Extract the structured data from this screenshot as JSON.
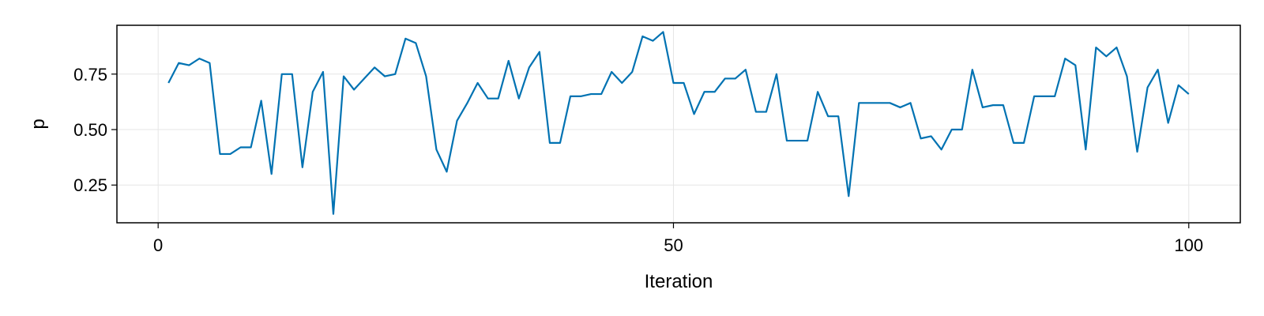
{
  "chart_data": {
    "type": "line",
    "title": "",
    "xlabel": "Iteration",
    "ylabel": "p",
    "xlim": [
      -4,
      105
    ],
    "ylim": [
      0.08,
      0.97
    ],
    "xticks": [
      0,
      50,
      100
    ],
    "xtick_labels": [
      "0",
      "50",
      "100"
    ],
    "yticks": [
      0.25,
      0.5,
      0.75
    ],
    "ytick_labels": [
      "0.25",
      "0.50",
      "0.75"
    ],
    "grid": true,
    "legend": "none",
    "series": [
      {
        "color": "#0072B2",
        "x": [
          1,
          2,
          3,
          4,
          5,
          6,
          7,
          8,
          9,
          10,
          11,
          12,
          13,
          14,
          15,
          16,
          17,
          18,
          19,
          20,
          21,
          22,
          23,
          24,
          25,
          26,
          27,
          28,
          29,
          30,
          31,
          32,
          33,
          34,
          35,
          36,
          37,
          38,
          39,
          40,
          41,
          42,
          43,
          44,
          45,
          46,
          47,
          48,
          49,
          50,
          51,
          52,
          53,
          54,
          55,
          56,
          57,
          58,
          59,
          60,
          61,
          62,
          63,
          64,
          65,
          66,
          67,
          68,
          69,
          70,
          71,
          72,
          73,
          74,
          75,
          76,
          77,
          78,
          79,
          80,
          81,
          82,
          83,
          84,
          85,
          86,
          87,
          88,
          89,
          90,
          91,
          92,
          93,
          94,
          95,
          96,
          97,
          98,
          99,
          100
        ],
        "y": [
          0.71,
          0.8,
          0.79,
          0.82,
          0.8,
          0.39,
          0.39,
          0.42,
          0.42,
          0.63,
          0.3,
          0.75,
          0.75,
          0.33,
          0.67,
          0.76,
          0.12,
          0.74,
          0.68,
          0.73,
          0.78,
          0.74,
          0.75,
          0.91,
          0.89,
          0.74,
          0.41,
          0.31,
          0.54,
          0.62,
          0.71,
          0.64,
          0.64,
          0.81,
          0.64,
          0.78,
          0.85,
          0.44,
          0.44,
          0.65,
          0.65,
          0.66,
          0.66,
          0.76,
          0.71,
          0.76,
          0.92,
          0.9,
          0.94,
          0.71,
          0.71,
          0.57,
          0.67,
          0.67,
          0.73,
          0.73,
          0.77,
          0.58,
          0.58,
          0.75,
          0.45,
          0.45,
          0.45,
          0.67,
          0.56,
          0.56,
          0.2,
          0.62,
          0.62,
          0.62,
          0.62,
          0.6,
          0.62,
          0.46,
          0.47,
          0.41,
          0.5,
          0.5,
          0.77,
          0.6,
          0.61,
          0.61,
          0.44,
          0.44,
          0.65,
          0.65,
          0.65,
          0.82,
          0.79,
          0.41,
          0.87,
          0.83,
          0.87,
          0.74,
          0.4,
          0.69,
          0.77,
          0.53,
          0.7,
          0.66
        ]
      }
    ]
  }
}
